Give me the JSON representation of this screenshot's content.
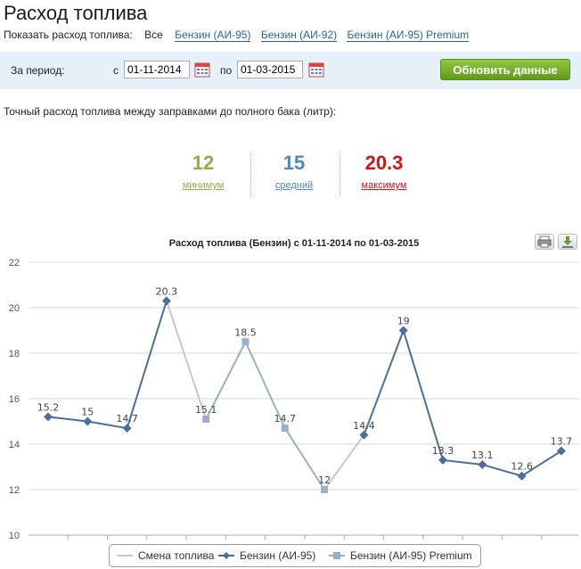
{
  "page_title": "Расход топлива",
  "fuel_filter": {
    "label": "Показать расход топлива:",
    "all": "Все",
    "links": [
      "Бензин (АИ-95)",
      "Бензин (АИ-92)",
      "Бензин (АИ-95) Premium"
    ]
  },
  "period": {
    "label": "За период:",
    "from_label": "с",
    "from_value": "01-11-2014",
    "to_label": "по",
    "to_value": "01-03-2015",
    "update_button": "Обновить данные"
  },
  "description": "Точный расход топлива между заправками до полного бака (литр):",
  "stats": [
    {
      "value": "12",
      "label": "минимум",
      "color": "#8bb04a"
    },
    {
      "value": "15",
      "label": "средний",
      "color": "#4a86c8"
    },
    {
      "value": "20.3",
      "label": "максимум",
      "color": "#d0141a"
    }
  ],
  "chart_data": {
    "type": "line",
    "title": "Расход топлива (Бензин) с 01-11-2014 по 01-03-2015",
    "ylim": [
      10,
      22
    ],
    "yticks": [
      10,
      12,
      14,
      16,
      18,
      20,
      22
    ],
    "grid": true,
    "legend_position": "bottom",
    "points": [
      {
        "y": 15.2,
        "label": "15.2",
        "fuel": "Бензин (АИ-95)"
      },
      {
        "y": 15,
        "label": "15",
        "fuel": "Бензин (АИ-95)"
      },
      {
        "y": 14.7,
        "label": "14.7",
        "fuel": "Бензин (АИ-95)"
      },
      {
        "y": 20.3,
        "label": "20.3",
        "fuel": "Бензин (АИ-95)"
      },
      {
        "y": 15.1,
        "label": "15.1",
        "fuel": "Бензин (АИ-95) Premium"
      },
      {
        "y": 18.5,
        "label": "18.5",
        "fuel": "Бензин (АИ-95) Premium"
      },
      {
        "y": 14.7,
        "label": "14.7",
        "fuel": "Бензин (АИ-95) Premium"
      },
      {
        "y": 12,
        "label": "12",
        "fuel": "Бензин (АИ-95) Premium"
      },
      {
        "y": 14.4,
        "label": "14.4",
        "fuel": "Бензин (АИ-95)"
      },
      {
        "y": 19,
        "label": "19",
        "fuel": "Бензин (АИ-95)"
      },
      {
        "y": 13.3,
        "label": "13.3",
        "fuel": "Бензин (АИ-95)"
      },
      {
        "y": 13.1,
        "label": "13.1",
        "fuel": "Бензин (АИ-95)"
      },
      {
        "y": 12.6,
        "label": "12.6",
        "fuel": "Бензин (АИ-95)"
      },
      {
        "y": 13.7,
        "label": "13.7",
        "fuel": "Бензин (АИ-95)"
      }
    ],
    "series": [
      {
        "name": "Смена топлива",
        "color": "#c8c8c8"
      },
      {
        "name": "Бензин (АИ-95)",
        "color": "#4a6f9a"
      },
      {
        "name": "Бензин (АИ-95) Premium",
        "color": "#9aafcc"
      }
    ]
  },
  "toolbar": {
    "print_icon": "print-icon",
    "download_icon": "download-icon"
  }
}
